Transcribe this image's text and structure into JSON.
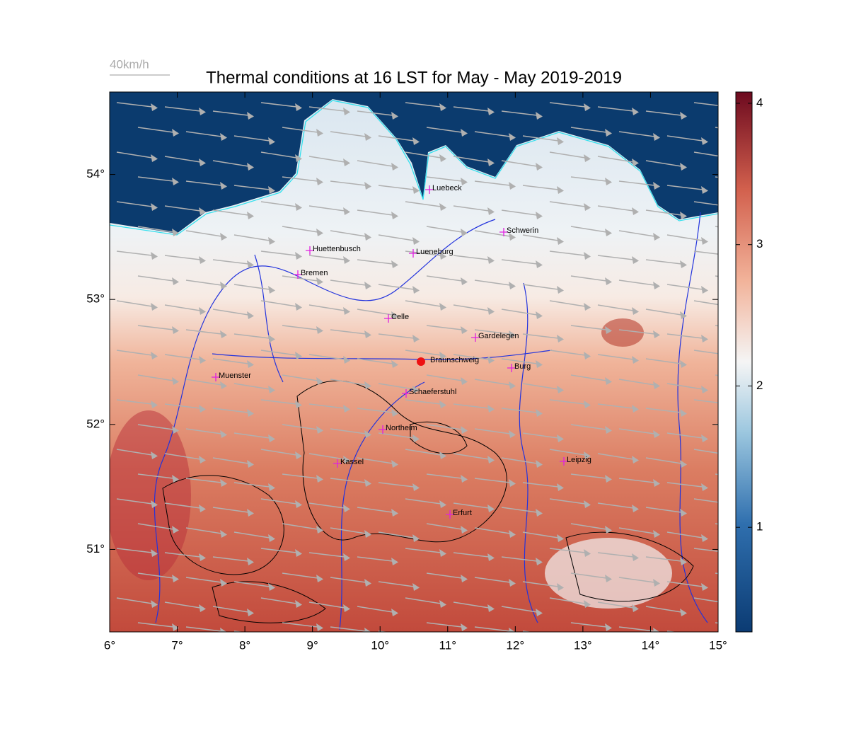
{
  "map": {
    "title": "Thermal conditions at 16 LST for May - May  2019-2019",
    "speed_scale_label": "40km/h",
    "xlim": [
      6,
      15
    ],
    "xticks": [
      {
        "value": 6,
        "label": "6°"
      },
      {
        "value": 7,
        "label": "7°"
      },
      {
        "value": 8,
        "label": "8°"
      },
      {
        "value": 9,
        "label": "9°"
      },
      {
        "value": 10,
        "label": "10°"
      },
      {
        "value": 11,
        "label": "11°"
      },
      {
        "value": 12,
        "label": "12°"
      },
      {
        "value": 13,
        "label": "13°"
      },
      {
        "value": 14,
        "label": "14°"
      },
      {
        "value": 15,
        "label": "15°"
      }
    ],
    "ylim": [
      50.34,
      54.66
    ],
    "yticks": [
      {
        "value": 51,
        "label": "51°"
      },
      {
        "value": 52,
        "label": "52°"
      },
      {
        "value": 53,
        "label": "53°"
      },
      {
        "value": 54,
        "label": "54°"
      }
    ],
    "colorbar": {
      "lim": [
        0.26,
        4.08
      ],
      "ticks": [
        1,
        2,
        3,
        4
      ]
    },
    "cities": [
      "Luebeck",
      "Schwerin",
      "Huettenbusch",
      "Lueneburg",
      "Bremen",
      "Celle",
      "Gardelegen",
      "Burg",
      "Muenster",
      "Schaeferstuhl",
      "Northeim",
      "Kassel",
      "Leipzig",
      "Erfurt"
    ],
    "site": "Braunschweig"
  }
}
